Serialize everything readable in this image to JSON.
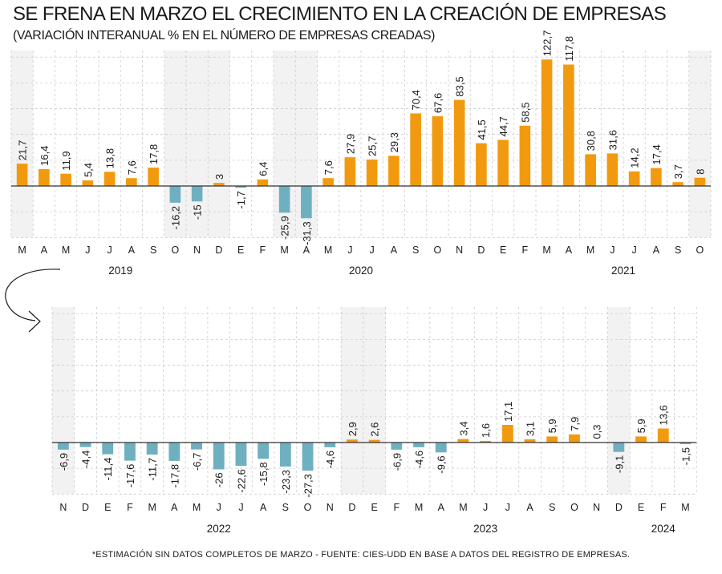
{
  "title": "SE FRENA EN MARZO EL CRECIMIENTO EN LA CREACIÓN DE EMPRESAS",
  "subtitle": "(VARIACIÓN INTERANUAL % EN EL NÚMERO DE EMPRESAS CREADAS)",
  "footnote": "*ESTIMACIÓN SIN DATOS COMPLETOS DE MARZO    -    FUENTE: CIES-UDD EN BASE A DATOS DEL REGISTRO DE EMPRESAS.",
  "colors": {
    "positive": "#f29a0f",
    "negative": "#6fb0c0",
    "shade": "#f2f2f2",
    "grid": "#cccccc"
  },
  "chart_data": [
    {
      "type": "bar",
      "categories": [
        "M",
        "A",
        "M",
        "J",
        "J",
        "A",
        "S",
        "O",
        "N",
        "D",
        "E",
        "F",
        "M",
        "A",
        "M",
        "J",
        "J",
        "A",
        "S",
        "O",
        "N",
        "D",
        "E",
        "F",
        "M",
        "A",
        "M",
        "J",
        "J",
        "A",
        "S",
        "O"
      ],
      "values": [
        21.7,
        16.4,
        11.9,
        5.4,
        13.8,
        7.6,
        17.8,
        -16.2,
        -15,
        3,
        -1.7,
        6.4,
        -25.9,
        -31.3,
        7.6,
        27.9,
        25.7,
        29.3,
        70.4,
        67.6,
        83.5,
        41.5,
        44.7,
        58.5,
        122.7,
        117.8,
        30.8,
        31.6,
        14.2,
        17.4,
        3.7,
        8
      ],
      "value_labels": [
        "21,7",
        "16,4",
        "11,9",
        "5,4",
        "13,8",
        "7,6",
        "17,8",
        "-16,2",
        "-15",
        "3",
        "-1,7",
        "6,4",
        "-25,9",
        "-31,3",
        "7,6",
        "27,9",
        "25,7",
        "29,3",
        "70,4",
        "67,6",
        "83,5",
        "41,5",
        "44,7",
        "58,5",
        "122,7",
        "117,8",
        "30,8",
        "31,6",
        "14,2",
        "17,4",
        "3,7",
        "8"
      ],
      "years": [
        {
          "label": "2019",
          "index": 4.5
        },
        {
          "label": "2020",
          "index": 15.5
        },
        {
          "label": "2021",
          "index": 27.5
        }
      ],
      "shaded_ranges": [
        [
          0,
          0
        ],
        [
          7,
          9
        ],
        [
          12,
          13
        ],
        [
          31,
          31
        ]
      ],
      "ylim": [
        -50,
        125
      ],
      "gridlines": [
        -50,
        -25,
        25,
        50,
        75,
        100,
        125
      ],
      "grid": true
    },
    {
      "type": "bar",
      "categories": [
        "N",
        "D",
        "E",
        "F",
        "M",
        "A",
        "M",
        "J",
        "J",
        "A",
        "S",
        "O",
        "N",
        "D",
        "E",
        "F",
        "M",
        "A",
        "M",
        "J",
        "J",
        "A",
        "S",
        "O",
        "N",
        "D",
        "E",
        "F",
        "M"
      ],
      "values": [
        -6.9,
        -4.4,
        -11.4,
        -17.6,
        -11.7,
        -17.8,
        -6.7,
        -26,
        -22.6,
        -15.8,
        -23.3,
        -27.3,
        -4.6,
        2.9,
        2.6,
        -6.9,
        -4.6,
        -9.6,
        3.4,
        1.6,
        17.1,
        3.1,
        5.9,
        7.9,
        0.3,
        -9.1,
        5.9,
        13.6,
        -1.5
      ],
      "value_labels": [
        "-6,9",
        "-4,4",
        "-11,4",
        "-17,6",
        "-11,7",
        "-17,8",
        "-6,7",
        "-26",
        "-22,6",
        "-15,8",
        "-23,3",
        "-27,3",
        "-4,6",
        "2,9",
        "2,6",
        "-6,9",
        "-4,6",
        "-9,6",
        "3,4",
        "1,6",
        "17,1",
        "3,1",
        "5,9",
        "7,9",
        "0,3",
        "-9,1",
        "5,9",
        "13,6",
        "-1,5"
      ],
      "years": [
        {
          "label": "2022",
          "index": 7
        },
        {
          "label": "2023",
          "index": 19
        },
        {
          "label": "2024",
          "index": 27
        }
      ],
      "shaded_ranges": [
        [
          0,
          0
        ],
        [
          13,
          14
        ],
        [
          25,
          25
        ]
      ],
      "ylim": [
        -50,
        125
      ],
      "gridlines": [
        -50,
        -25,
        25,
        50,
        75,
        100,
        125
      ],
      "grid": true
    }
  ]
}
